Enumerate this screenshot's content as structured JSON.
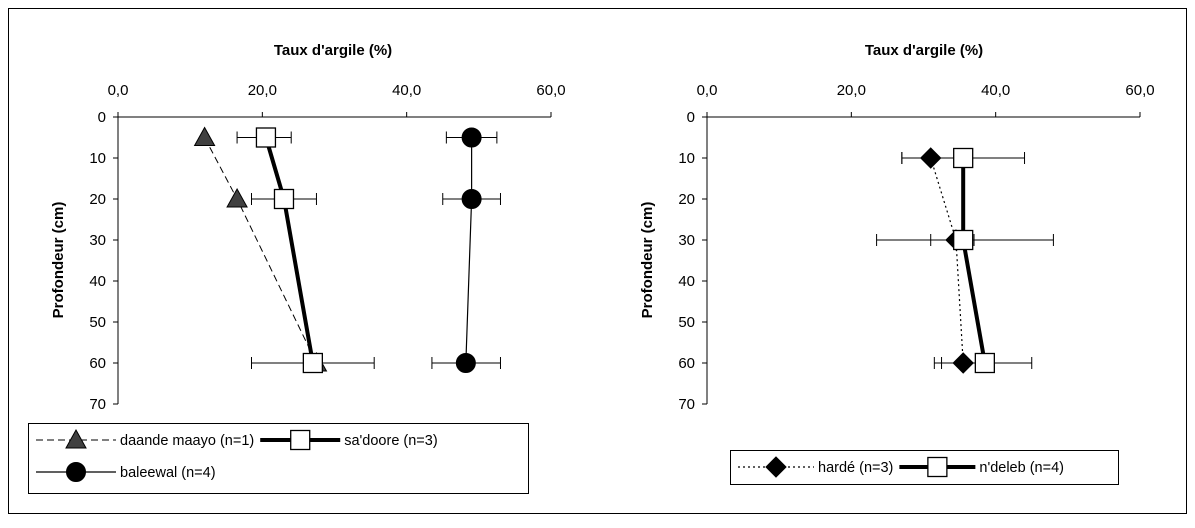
{
  "chart_data": [
    {
      "type": "scatter",
      "title": "Taux d'argile (%)",
      "xlabel": "Taux d'argile (%)",
      "ylabel": "Profondeur (cm)",
      "xlim": [
        0,
        60
      ],
      "ylim": [
        0,
        70
      ],
      "x_axis_position": "top",
      "y_axis_inverted": true,
      "x_ticks": [
        "0,0",
        "20,0",
        "40,0",
        "60,0"
      ],
      "y_ticks": [
        "0",
        "10",
        "20",
        "30",
        "40",
        "50",
        "60",
        "70"
      ],
      "legend_placement": "bottom",
      "series": [
        {
          "name": "daande maayo (n=1)",
          "line": "dashed-thin",
          "marker": "triangle",
          "marker_color": "#404040",
          "points": [
            {
              "x": 12,
              "y": 5
            },
            {
              "x": 16.5,
              "y": 20
            },
            {
              "x": 27.5,
              "y": 60
            }
          ]
        },
        {
          "name": "sa'doore (n=3)",
          "line": "solid-thick",
          "marker": "square-open",
          "marker_color": "#ffffff",
          "points": [
            {
              "x": 20.5,
              "y": 5,
              "err_low": 16.5,
              "err_high": 24
            },
            {
              "x": 23,
              "y": 20,
              "err_low": 18.5,
              "err_high": 27.5
            },
            {
              "x": 27,
              "y": 60,
              "err_low": 18.5,
              "err_high": 35.5
            }
          ]
        },
        {
          "name": "baleewal (n=4)",
          "line": "solid-thin",
          "marker": "circle",
          "marker_color": "#000000",
          "points": [
            {
              "x": 49,
              "y": 5,
              "err_low": 45.5,
              "err_high": 52.5
            },
            {
              "x": 49,
              "y": 20,
              "err_low": 45,
              "err_high": 53
            },
            {
              "x": 48.2,
              "y": 60,
              "err_low": 43.5,
              "err_high": 53
            }
          ]
        }
      ]
    },
    {
      "type": "scatter",
      "title": "Taux d'argile (%)",
      "xlabel": "Taux d'argile (%)",
      "ylabel": "Profondeur (cm)",
      "xlim": [
        0,
        60
      ],
      "ylim": [
        0,
        70
      ],
      "x_axis_position": "top",
      "y_axis_inverted": true,
      "x_ticks": [
        "0,0",
        "20,0",
        "40,0",
        "60,0"
      ],
      "y_ticks": [
        "0",
        "10",
        "20",
        "30",
        "40",
        "50",
        "60",
        "70"
      ],
      "legend_placement": "bottom",
      "series": [
        {
          "name": "hardé (n=3)",
          "line": "dotted-thin",
          "marker": "diamond",
          "marker_color": "#000000",
          "points": [
            {
              "x": 31,
              "y": 10,
              "err_low": 27,
              "err_high": 35
            },
            {
              "x": 34.5,
              "y": 30,
              "err_low": 31,
              "err_high": 37
            },
            {
              "x": 35.5,
              "y": 60,
              "err_low": 31.5,
              "err_high": 39
            }
          ]
        },
        {
          "name": "n'deleb (n=4)",
          "line": "solid-thick",
          "marker": "square-open",
          "marker_color": "#ffffff",
          "points": [
            {
              "x": 35.5,
              "y": 10,
              "err_low": 27,
              "err_high": 44
            },
            {
              "x": 35.5,
              "y": 30,
              "err_low": 23.5,
              "err_high": 48
            },
            {
              "x": 38.5,
              "y": 60,
              "err_low": 32.5,
              "err_high": 45
            }
          ]
        }
      ]
    }
  ]
}
